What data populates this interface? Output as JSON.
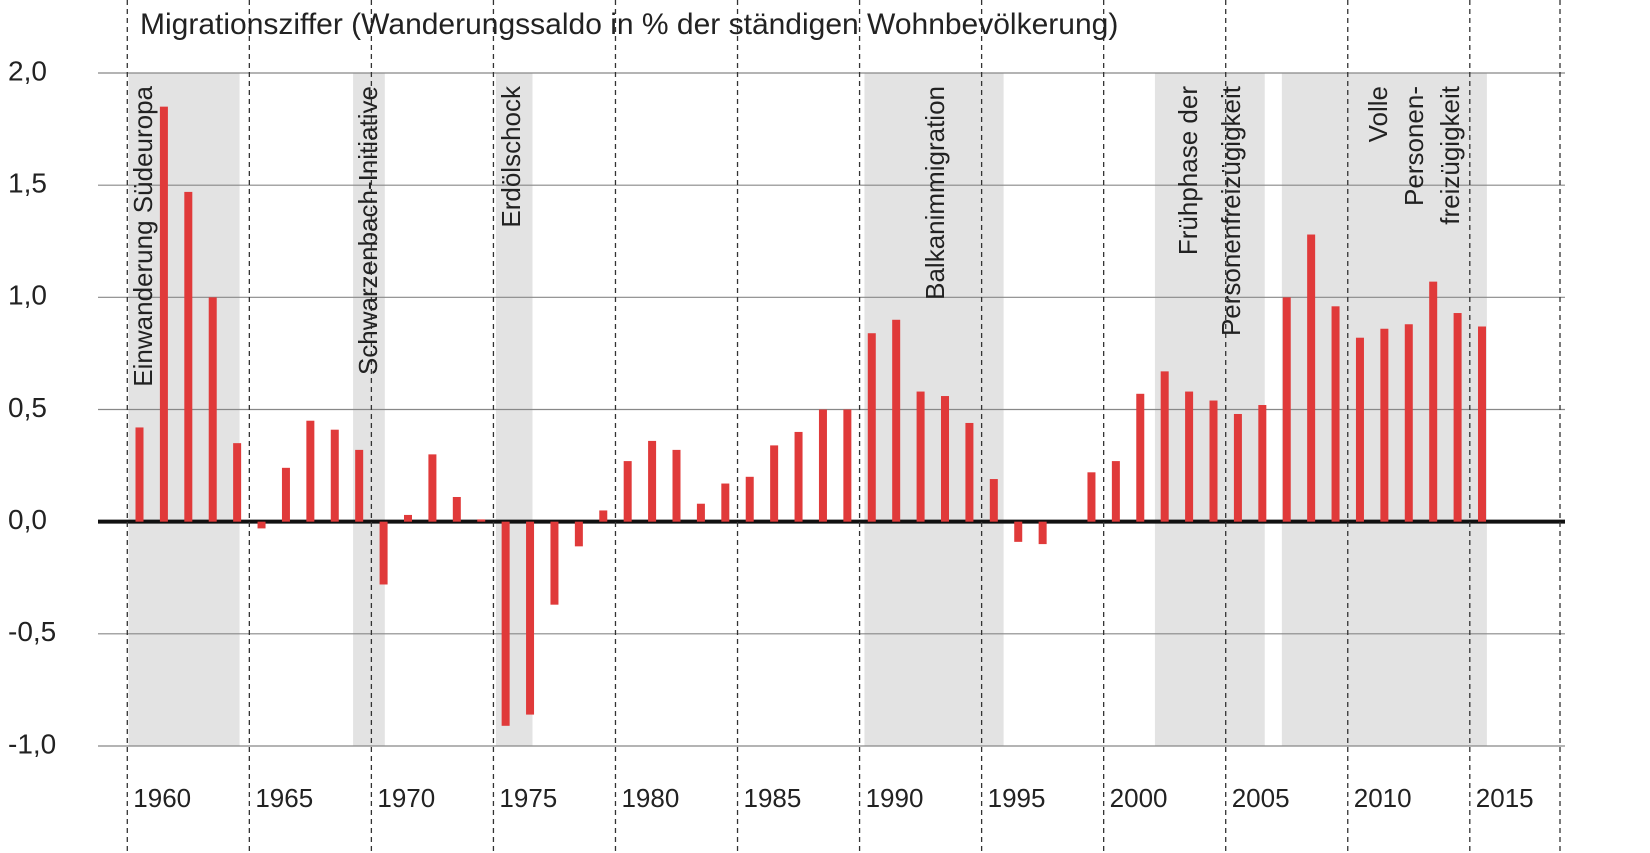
{
  "chart_data": {
    "type": "bar",
    "title": "Migrationsziffer (Wanderungssaldo in % der ständigen Wohnbevölkerung)",
    "x": [
      1960,
      1961,
      1962,
      1963,
      1964,
      1965,
      1966,
      1967,
      1968,
      1969,
      1970,
      1971,
      1972,
      1973,
      1974,
      1975,
      1976,
      1977,
      1978,
      1979,
      1980,
      1981,
      1982,
      1983,
      1984,
      1985,
      1986,
      1987,
      1988,
      1989,
      1990,
      1991,
      1992,
      1993,
      1994,
      1995,
      1996,
      1997,
      1998,
      1999,
      2000,
      2001,
      2002,
      2003,
      2004,
      2005,
      2006,
      2007,
      2008,
      2009,
      2010,
      2011,
      2012,
      2013,
      2014,
      2015
    ],
    "values": [
      0.42,
      1.85,
      1.47,
      1.0,
      0.35,
      -0.03,
      0.24,
      0.45,
      0.41,
      0.32,
      -0.28,
      0.03,
      0.3,
      0.11,
      0.01,
      -0.91,
      -0.86,
      -0.37,
      -0.11,
      0.05,
      0.27,
      0.36,
      0.32,
      0.08,
      0.17,
      0.2,
      0.34,
      0.4,
      0.5,
      0.5,
      0.84,
      0.9,
      0.58,
      0.56,
      0.44,
      0.19,
      -0.09,
      -0.1,
      0.0,
      0.22,
      0.27,
      0.57,
      0.67,
      0.58,
      0.54,
      0.48,
      0.52,
      1.0,
      1.28,
      0.96,
      0.82,
      0.86,
      0.88,
      1.07,
      0.93,
      0.87
    ],
    "color": "#e03a3a",
    "xlim": [
      1958.3,
      2018.4
    ],
    "xticks": [
      1960,
      1965,
      1970,
      1975,
      1980,
      1985,
      1990,
      1995,
      2000,
      2005,
      2010,
      2015
    ],
    "ylim": [
      -1.0,
      2.0
    ],
    "yticks": [
      {
        "value": -1.0,
        "label": "-1,0"
      },
      {
        "value": -0.5,
        "label": "-0,5"
      },
      {
        "value": 0,
        "label": "0,0"
      },
      {
        "value": 0.5,
        "label": "0,5"
      },
      {
        "value": 1.0,
        "label": "1,0"
      },
      {
        "value": 1.5,
        "label": "1,5"
      },
      {
        "value": 2.0,
        "label": "2,0"
      }
    ],
    "grid": true,
    "annotations": [
      {
        "lines": [
          "Einwanderung Südeuropa"
        ],
        "start": 1959.55,
        "end": 1964.1
      },
      {
        "lines": [
          "Schwarzenbach-Initiative"
        ],
        "start": 1968.75,
        "end": 1970.05
      },
      {
        "lines": [
          "Erdölschock"
        ],
        "start": 1974.6,
        "end": 1976.1
      },
      {
        "lines": [
          "Balkanimmigration"
        ],
        "start": 1989.7,
        "end": 1995.4
      },
      {
        "lines": [
          "Frühphase der",
          "Personenfreizügigkeit"
        ],
        "start": 2001.6,
        "end": 2006.1
      },
      {
        "lines": [
          "Volle",
          "Personen-",
          "freizügigkeit"
        ],
        "start": 2006.8,
        "end": 2015.2
      }
    ]
  }
}
